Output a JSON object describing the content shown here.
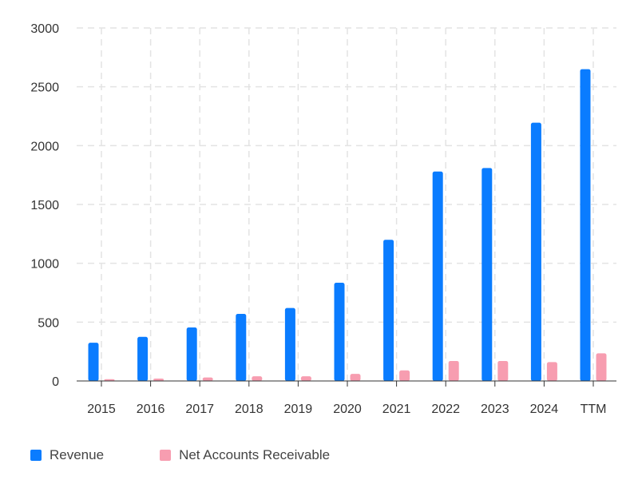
{
  "chart_data": {
    "type": "bar",
    "categories": [
      "2015",
      "2016",
      "2017",
      "2018",
      "2019",
      "2020",
      "2021",
      "2022",
      "2023",
      "2024",
      "TTM"
    ],
    "series": [
      {
        "name": "Revenue",
        "color": "#0a7cff",
        "values": [
          325,
          375,
          455,
          570,
          620,
          835,
          1200,
          1780,
          1810,
          2195,
          2650
        ]
      },
      {
        "name": "Net Accounts Receivable",
        "color": "#f79db0",
        "values": [
          15,
          20,
          30,
          40,
          40,
          60,
          90,
          170,
          170,
          160,
          235
        ]
      }
    ],
    "ylim": [
      0,
      3000
    ],
    "yticks": [
      0,
      500,
      1000,
      1500,
      2000,
      2500,
      3000
    ],
    "grid": true,
    "legend": "bottom-left"
  }
}
